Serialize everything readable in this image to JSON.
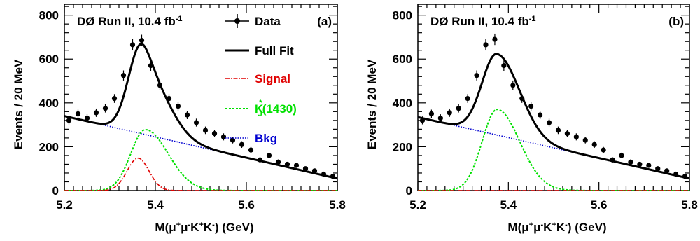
{
  "chart_data": [
    {
      "type": "line",
      "panel_label": "(a)",
      "experiment_label": "DØ Run II, 10.4 fb",
      "experiment_label_sup": "-1",
      "xlabel_parts": [
        "M(μ",
        "+",
        "μ",
        "-",
        "K",
        "+",
        "K",
        "-",
        ") (GeV)"
      ],
      "ylabel": "Events / 20 MeV",
      "xlim": [
        5.2,
        5.8
      ],
      "ylim": [
        0,
        850
      ],
      "x_ticks": [
        "5.2",
        "5.4",
        "5.6",
        "5.8"
      ],
      "y_ticks": [
        "0",
        "200",
        "400",
        "600",
        "800"
      ],
      "grid": false,
      "legend_position": "right",
      "legend": {
        "data": "Data",
        "full_fit": "Full Fit",
        "signal": "Signal",
        "kj": "K",
        "kj_sup": "*",
        "kj_sub": "J",
        "kj_tail": "(1430)",
        "bkg": "Bkg"
      },
      "colors": {
        "full_fit": "#000000",
        "signal": "#e00000",
        "kj": "#00e000",
        "bkg": "#0000d0",
        "data": "#000000"
      },
      "data_points": {
        "x": [
          5.21,
          5.23,
          5.25,
          5.27,
          5.29,
          5.31,
          5.33,
          5.35,
          5.37,
          5.39,
          5.41,
          5.43,
          5.45,
          5.47,
          5.49,
          5.51,
          5.53,
          5.55,
          5.57,
          5.59,
          5.61,
          5.63,
          5.65,
          5.67,
          5.69,
          5.71,
          5.73,
          5.75,
          5.77,
          5.79
        ],
        "y": [
          320,
          350,
          330,
          355,
          375,
          420,
          525,
          665,
          685,
          570,
          480,
          420,
          385,
          345,
          310,
          275,
          260,
          245,
          230,
          210,
          185,
          140,
          160,
          130,
          120,
          115,
          100,
          90,
          75,
          65
        ],
        "err": [
          18,
          19,
          18,
          19,
          19,
          20,
          23,
          26,
          26,
          24,
          22,
          20,
          20,
          19,
          18,
          17,
          16,
          16,
          15,
          15,
          14,
          12,
          13,
          12,
          11,
          11,
          10,
          10,
          9,
          8
        ]
      },
      "signal": {
        "peak": 148,
        "mean": 5.362,
        "sigma": 0.024,
        "shape": "gaussian"
      },
      "kj1430": {
        "peak": 278,
        "mean": 5.378,
        "sigma_left": 0.032,
        "sigma_right": 0.05,
        "shape": "asymmetric-gaussian"
      },
      "background": {
        "linear_endpoints": [
          [
            5.2,
            340
          ],
          [
            5.8,
            55
          ]
        ]
      }
    },
    {
      "type": "line",
      "panel_label": "(b)",
      "experiment_label": "DØ Run II, 10.4 fb",
      "experiment_label_sup": "-1",
      "xlabel_parts": [
        "M(μ",
        "+",
        "μ",
        "-",
        "K",
        "+",
        "K",
        "-",
        ") (GeV)"
      ],
      "ylabel": "Events / 20 MeV",
      "xlim": [
        5.2,
        5.8
      ],
      "ylim": [
        0,
        850
      ],
      "x_ticks": [
        "5.2",
        "5.4",
        "5.6",
        "5.8"
      ],
      "y_ticks": [
        "0",
        "200",
        "400",
        "600",
        "800"
      ],
      "grid": false,
      "colors": {
        "full_fit": "#000000",
        "signal": "#e00000",
        "kj": "#00e000",
        "bkg": "#0000d0",
        "data": "#000000"
      },
      "data_points": {
        "x": [
          5.21,
          5.23,
          5.25,
          5.27,
          5.29,
          5.31,
          5.33,
          5.35,
          5.37,
          5.39,
          5.41,
          5.43,
          5.45,
          5.47,
          5.49,
          5.51,
          5.53,
          5.55,
          5.57,
          5.59,
          5.61,
          5.63,
          5.65,
          5.67,
          5.69,
          5.71,
          5.73,
          5.75,
          5.77,
          5.79
        ],
        "y": [
          320,
          350,
          330,
          355,
          375,
          420,
          525,
          665,
          690,
          570,
          480,
          420,
          385,
          345,
          310,
          275,
          260,
          245,
          230,
          210,
          185,
          140,
          160,
          130,
          120,
          115,
          100,
          90,
          75,
          65
        ],
        "err": [
          18,
          19,
          18,
          19,
          19,
          20,
          23,
          26,
          26,
          24,
          22,
          20,
          20,
          19,
          18,
          17,
          16,
          16,
          15,
          15,
          14,
          12,
          13,
          12,
          11,
          11,
          10,
          10,
          9,
          8
        ]
      },
      "signal": {
        "peak": 0,
        "mean": 5.362,
        "sigma": 0.024,
        "shape": "gaussian"
      },
      "kj1430": {
        "peak": 370,
        "mean": 5.375,
        "sigma_left": 0.033,
        "sigma_right": 0.05,
        "shape": "asymmetric-gaussian"
      },
      "background": {
        "linear_endpoints": [
          [
            5.2,
            335
          ],
          [
            5.8,
            55
          ]
        ]
      }
    }
  ]
}
